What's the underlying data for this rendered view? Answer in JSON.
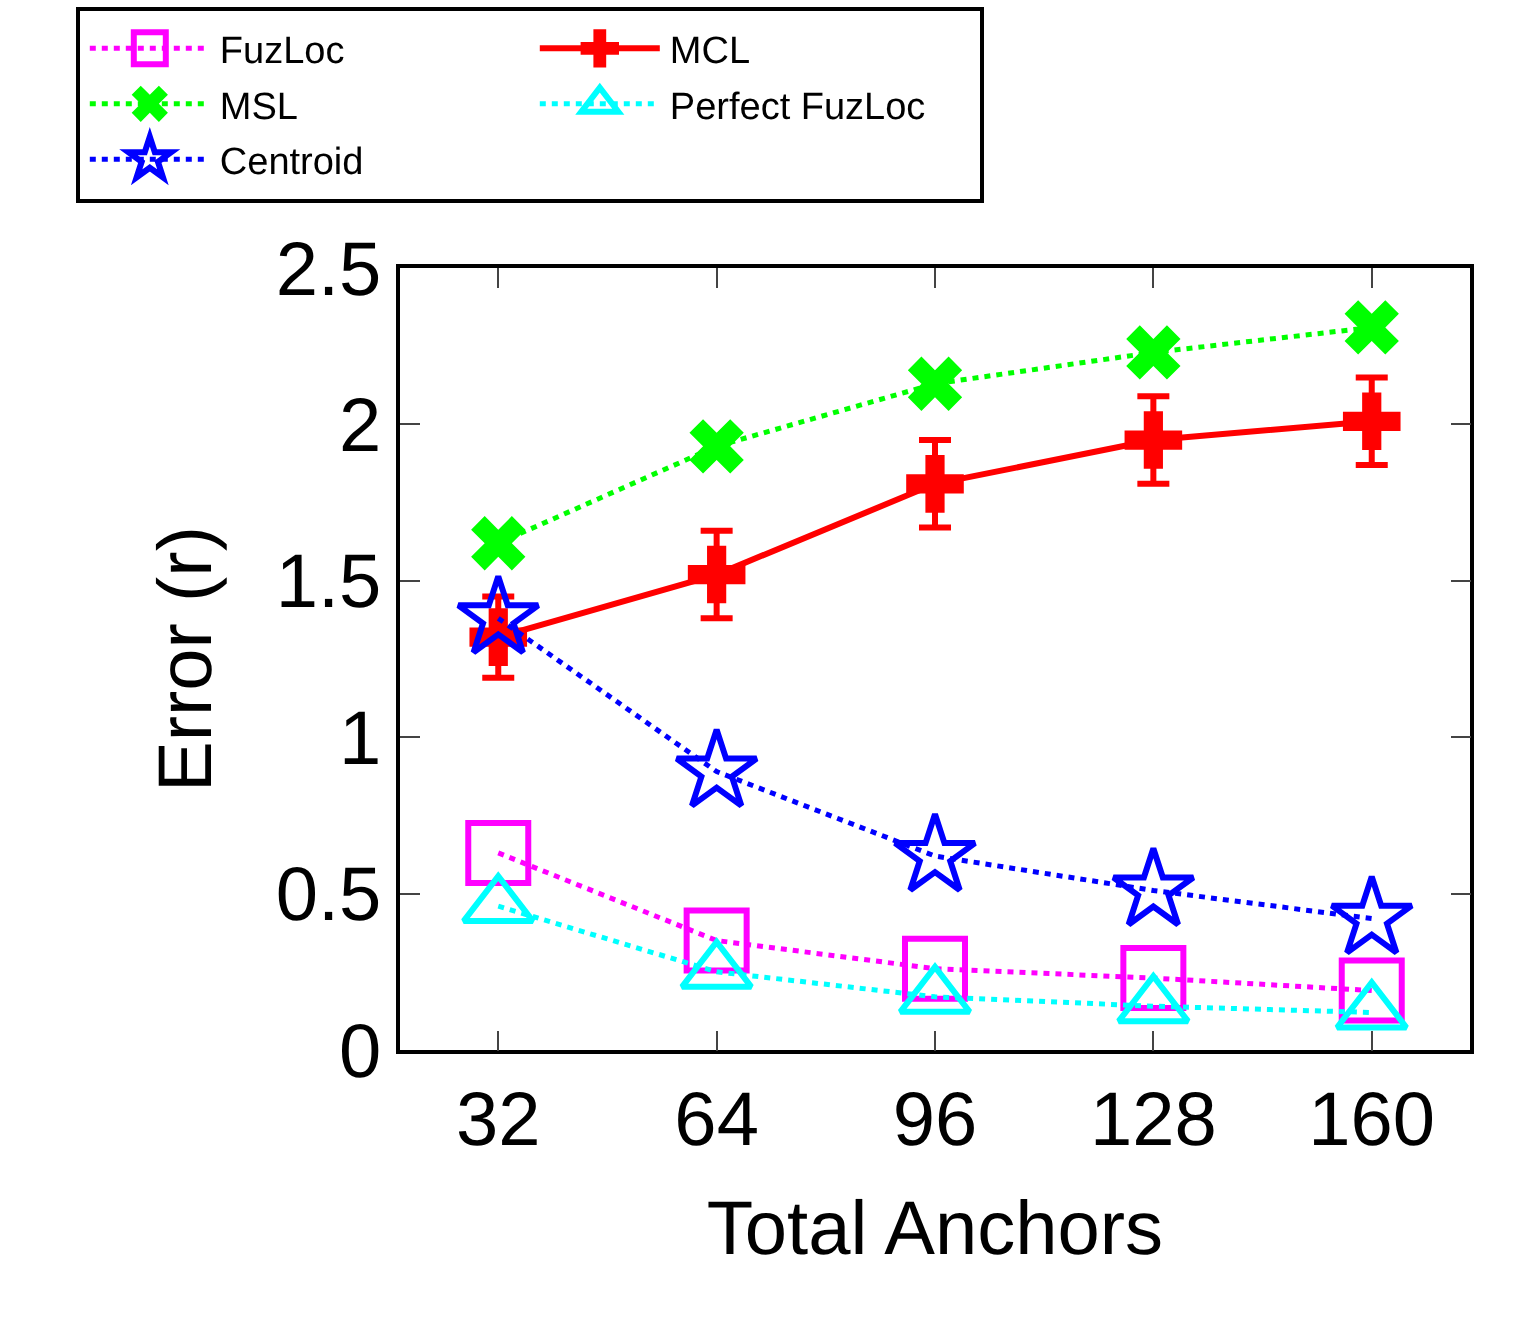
{
  "chart_data": {
    "type": "line",
    "xlabel": "Total Anchors",
    "ylabel": "Error (r)",
    "categories": [
      "32",
      "64",
      "96",
      "128",
      "160"
    ],
    "ylim": [
      0,
      2.5
    ],
    "yticks": [
      0,
      0.5,
      1,
      1.5,
      2,
      2.5
    ],
    "grid": false,
    "legend": "top",
    "series": [
      {
        "name": "FuzLoc",
        "color": "#ff00ff",
        "marker": "square",
        "line_style": "dotted",
        "values": [
          0.63,
          0.35,
          0.26,
          0.23,
          0.19
        ]
      },
      {
        "name": "MCL",
        "color": "#ff0000",
        "marker": "cross",
        "line_style": "solid",
        "values": [
          1.32,
          1.52,
          1.81,
          1.95,
          2.01
        ],
        "errors": [
          0.13,
          0.14,
          0.14,
          0.14,
          0.14
        ]
      },
      {
        "name": "MSL",
        "color": "#00ff00",
        "marker": "x",
        "line_style": "dotted",
        "values": [
          1.62,
          1.93,
          2.13,
          2.23,
          2.31
        ]
      },
      {
        "name": "Perfect FuzLoc",
        "color": "#00ffff",
        "marker": "triangle",
        "line_style": "dotted",
        "values": [
          0.46,
          0.25,
          0.17,
          0.14,
          0.12
        ]
      },
      {
        "name": "Centroid",
        "color": "#0000ff",
        "marker": "star",
        "line_style": "dotted",
        "values": [
          1.38,
          0.89,
          0.62,
          0.51,
          0.42
        ]
      }
    ]
  }
}
